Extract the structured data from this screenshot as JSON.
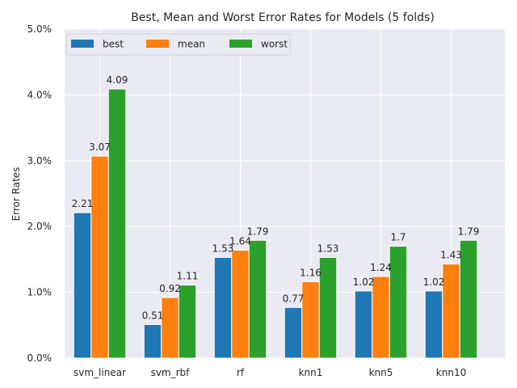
{
  "chart_data": {
    "type": "bar",
    "title": "Best, Mean and Worst Error Rates for Models (5 folds)",
    "xlabel": "",
    "ylabel": "Error Rates",
    "categories": [
      "svm_linear",
      "svm_rbf",
      "rf",
      "knn1",
      "knn5",
      "knn10"
    ],
    "series": [
      {
        "name": "best",
        "color": "#1f77b4",
        "values": [
          2.21,
          0.51,
          1.53,
          0.77,
          1.02,
          1.02
        ]
      },
      {
        "name": "mean",
        "color": "#ff7f0e",
        "values": [
          3.07,
          0.92,
          1.64,
          1.16,
          1.24,
          1.43
        ]
      },
      {
        "name": "worst",
        "color": "#2ca02c",
        "values": [
          4.09,
          1.11,
          1.79,
          1.53,
          1.7,
          1.79
        ]
      }
    ],
    "data_labels": [
      [
        "2.21",
        "0.51",
        "1.53",
        "0.77",
        "1.02",
        "1.02"
      ],
      [
        "3.07",
        "0.92",
        "1.64",
        "1.16",
        "1.24",
        "1.43"
      ],
      [
        "4.09",
        "1.11",
        "1.79",
        "1.53",
        "1.7",
        "1.79"
      ]
    ],
    "ylim": [
      0,
      5
    ],
    "yticks": [
      0,
      1,
      2,
      3,
      4,
      5
    ],
    "ytick_labels": [
      "0.0%",
      "1.0%",
      "2.0%",
      "3.0%",
      "4.0%",
      "5.0%"
    ],
    "grid": true,
    "legend_placement": "top-left",
    "plot_background": "#eaeaf2",
    "grid_color": "#ffffff"
  }
}
